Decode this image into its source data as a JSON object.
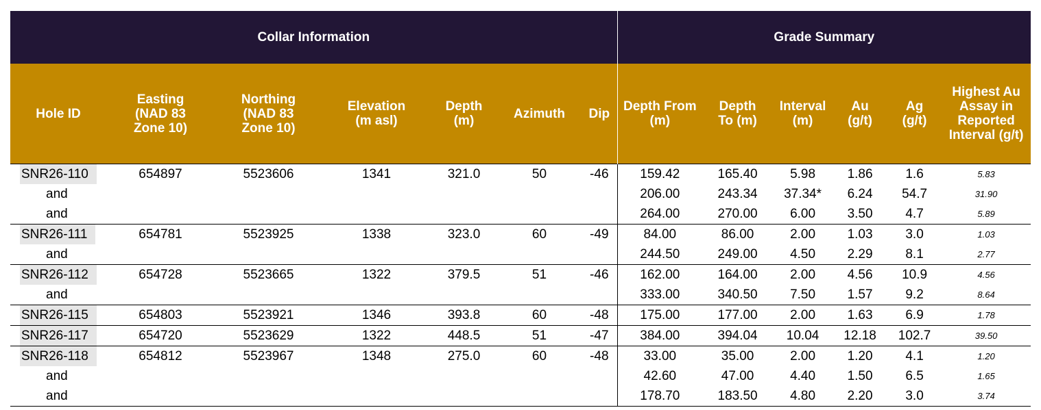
{
  "header": {
    "collar_title": "Collar Information",
    "grade_title": "Grade Summary"
  },
  "columns": [
    "Hole ID",
    "Easting (NAD 83 Zone 10)",
    "Northing (NAD 83 Zone 10)",
    "Elevation (m asl)",
    "Depth (m)",
    "Azimuth",
    "Dip",
    "Depth From (m)",
    "Depth To (m)",
    "Interval (m)",
    "Au (g/t)",
    "Ag (g/t)",
    "Highest Au Assay in Reported Interval (g/t)"
  ],
  "groups": [
    {
      "rows": [
        [
          "SNR26-110",
          "654897",
          "5523606",
          "1341",
          "321.0",
          "50",
          "-46",
          "159.42",
          "165.40",
          "5.98",
          "1.86",
          "1.6",
          "5.83"
        ],
        [
          "and",
          "",
          "",
          "",
          "",
          "",
          "",
          "206.00",
          "243.34",
          "37.34*",
          "6.24",
          "54.7",
          "31.90"
        ],
        [
          "and",
          "",
          "",
          "",
          "",
          "",
          "",
          "264.00",
          "270.00",
          "6.00",
          "3.50",
          "4.7",
          "5.89"
        ]
      ]
    },
    {
      "rows": [
        [
          "SNR26-111",
          "654781",
          "5523925",
          "1338",
          "323.0",
          "60",
          "-49",
          "84.00",
          "86.00",
          "2.00",
          "1.03",
          "3.0",
          "1.03"
        ],
        [
          "and",
          "",
          "",
          "",
          "",
          "",
          "",
          "244.50",
          "249.00",
          "4.50",
          "2.29",
          "8.1",
          "2.77"
        ]
      ]
    },
    {
      "rows": [
        [
          "SNR26-112",
          "654728",
          "5523665",
          "1322",
          "379.5",
          "51",
          "-46",
          "162.00",
          "164.00",
          "2.00",
          "4.56",
          "10.9",
          "4.56"
        ],
        [
          "and",
          "",
          "",
          "",
          "",
          "",
          "",
          "333.00",
          "340.50",
          "7.50",
          "1.57",
          "9.2",
          "8.64"
        ]
      ]
    },
    {
      "rows": [
        [
          "SNR26-115",
          "654803",
          "5523921",
          "1346",
          "393.8",
          "60",
          "-48",
          "175.00",
          "177.00",
          "2.00",
          "1.63",
          "6.9",
          "1.78"
        ]
      ]
    },
    {
      "rows": [
        [
          "SNR26-117",
          "654720",
          "5523629",
          "1322",
          "448.5",
          "51",
          "-47",
          "384.00",
          "394.04",
          "10.04",
          "12.18",
          "102.7",
          "39.50"
        ]
      ]
    },
    {
      "rows": [
        [
          "SNR26-118",
          "654812",
          "5523967",
          "1348",
          "275.0",
          "60",
          "-48",
          "33.00",
          "35.00",
          "2.00",
          "1.20",
          "4.1",
          "1.20"
        ],
        [
          "and",
          "",
          "",
          "",
          "",
          "",
          "",
          "42.60",
          "47.00",
          "4.40",
          "1.50",
          "6.5",
          "1.65"
        ],
        [
          "and",
          "",
          "",
          "",
          "",
          "",
          "",
          "178.70",
          "183.50",
          "4.80",
          "2.20",
          "3.0",
          "3.74"
        ]
      ]
    }
  ]
}
